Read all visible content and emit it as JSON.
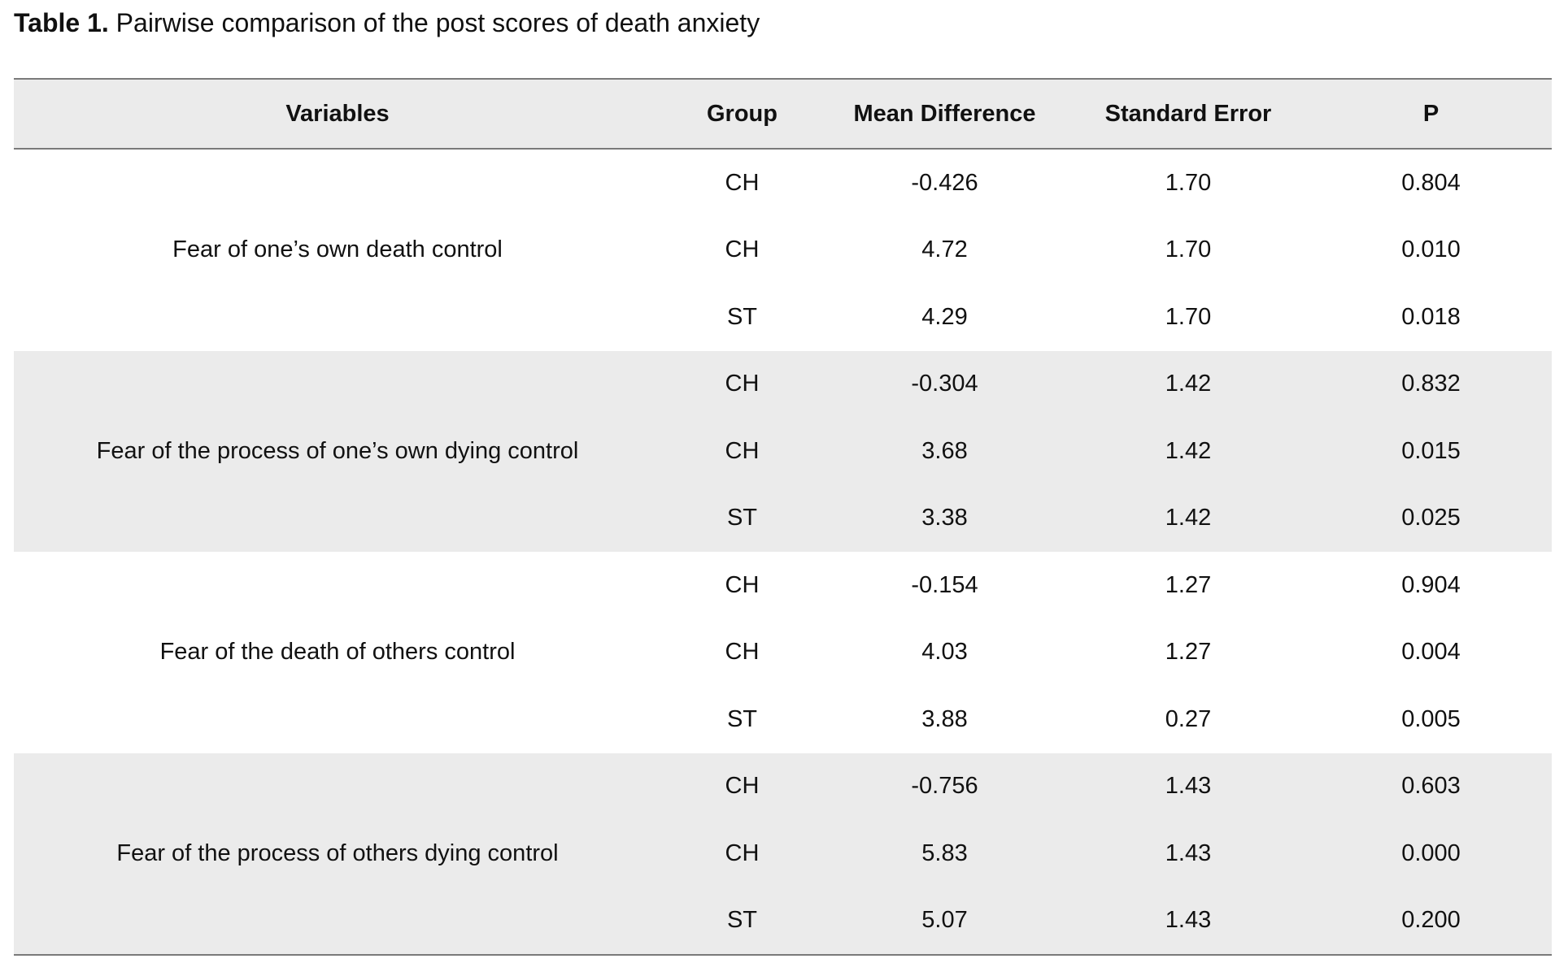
{
  "caption": {
    "label": "Table 1.",
    "text": " Pairwise comparison of the post scores of death anxiety"
  },
  "table": {
    "headers": [
      "Variables",
      "Group",
      "Mean Difference",
      "Standard Error",
      "P"
    ],
    "groups": [
      {
        "variable": "Fear of one’s own death control",
        "shaded": false,
        "rows": [
          {
            "group": "CH",
            "mean_difference": "-0.426",
            "standard_error": "1.70",
            "p": "0.804"
          },
          {
            "group": "CH",
            "mean_difference": "4.72",
            "standard_error": "1.70",
            "p": "0.010"
          },
          {
            "group": "ST",
            "mean_difference": "4.29",
            "standard_error": "1.70",
            "p": "0.018"
          }
        ]
      },
      {
        "variable": "Fear of the process of one’s own dying control",
        "shaded": true,
        "rows": [
          {
            "group": "CH",
            "mean_difference": "-0.304",
            "standard_error": "1.42",
            "p": "0.832"
          },
          {
            "group": "CH",
            "mean_difference": "3.68",
            "standard_error": "1.42",
            "p": "0.015"
          },
          {
            "group": "ST",
            "mean_difference": "3.38",
            "standard_error": "1.42",
            "p": "0.025"
          }
        ]
      },
      {
        "variable": "Fear of the death of others control",
        "shaded": false,
        "rows": [
          {
            "group": "CH",
            "mean_difference": "-0.154",
            "standard_error": "1.27",
            "p": "0.904"
          },
          {
            "group": "CH",
            "mean_difference": "4.03",
            "standard_error": "1.27",
            "p": "0.004"
          },
          {
            "group": "ST",
            "mean_difference": "3.88",
            "standard_error": "0.27",
            "p": "0.005"
          }
        ]
      },
      {
        "variable": "Fear of the process of others dying control",
        "shaded": true,
        "rows": [
          {
            "group": "CH",
            "mean_difference": "-0.756",
            "standard_error": "1.43",
            "p": "0.603"
          },
          {
            "group": "CH",
            "mean_difference": "5.83",
            "standard_error": "1.43",
            "p": "0.000"
          },
          {
            "group": "ST",
            "mean_difference": "5.07",
            "standard_error": "1.43",
            "p": "0.200"
          }
        ]
      }
    ]
  }
}
